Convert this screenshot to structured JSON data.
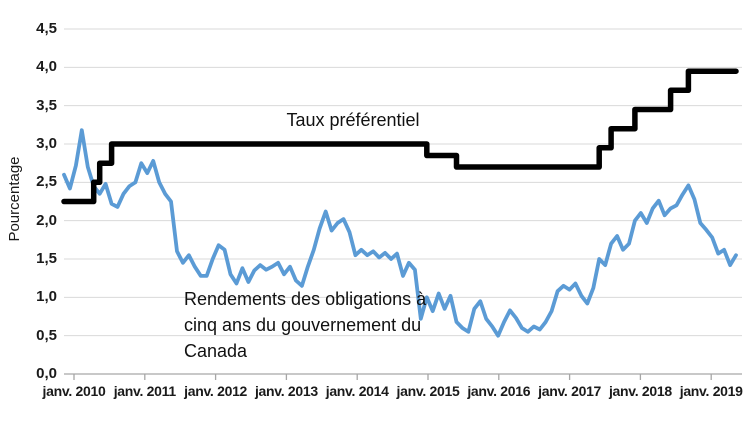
{
  "figure": {
    "y_axis_title": "Pourcentage",
    "annotations": {
      "prime_label": "Taux préférentiel",
      "bond_label": "Rendements des obligations à cinq ans du gouvernement du Canada"
    },
    "colors": {
      "prime_line": "#000000",
      "bond_line": "#5b9bd5",
      "gridline": "#d9d9d9",
      "axis_line": "#a6a6a6",
      "label_text": "#1a1a1a"
    }
  },
  "chart_data": {
    "type": "line",
    "title": "",
    "xlabel": "",
    "ylabel": "Pourcentage",
    "ylim": [
      0,
      4.5
    ],
    "y_tick_step": 0.5,
    "grid": true,
    "legend_position": "none (inline annotations)",
    "y_tick_labels": [
      "0,0",
      "0,5",
      "1,0",
      "1,5",
      "2,0",
      "2,5",
      "3,0",
      "3,5",
      "4,0",
      "4,5"
    ],
    "x_tick_labels": [
      "janv. 2010",
      "janv. 2011",
      "janv. 2012",
      "janv. 2013",
      "janv. 2014",
      "janv. 2015",
      "janv. 2016",
      "janv. 2017",
      "janv. 2018",
      "janv. 2019"
    ],
    "x_start": "2010-01",
    "x_frequency": "monthly",
    "series": [
      {
        "name": "Taux préférentiel",
        "style": "step",
        "color": "#000000",
        "values": [
          2.25,
          2.25,
          2.25,
          2.25,
          2.25,
          2.5,
          2.75,
          2.75,
          3.0,
          3.0,
          3.0,
          3.0,
          3.0,
          3.0,
          3.0,
          3.0,
          3.0,
          3.0,
          3.0,
          3.0,
          3.0,
          3.0,
          3.0,
          3.0,
          3.0,
          3.0,
          3.0,
          3.0,
          3.0,
          3.0,
          3.0,
          3.0,
          3.0,
          3.0,
          3.0,
          3.0,
          3.0,
          3.0,
          3.0,
          3.0,
          3.0,
          3.0,
          3.0,
          3.0,
          3.0,
          3.0,
          3.0,
          3.0,
          3.0,
          3.0,
          3.0,
          3.0,
          3.0,
          3.0,
          3.0,
          3.0,
          3.0,
          3.0,
          3.0,
          3.0,
          3.0,
          2.85,
          2.85,
          2.85,
          2.85,
          2.85,
          2.7,
          2.7,
          2.7,
          2.7,
          2.7,
          2.7,
          2.7,
          2.7,
          2.7,
          2.7,
          2.7,
          2.7,
          2.7,
          2.7,
          2.7,
          2.7,
          2.7,
          2.7,
          2.7,
          2.7,
          2.7,
          2.7,
          2.7,
          2.7,
          2.95,
          2.95,
          3.2,
          3.2,
          3.2,
          3.2,
          3.45,
          3.45,
          3.45,
          3.45,
          3.45,
          3.45,
          3.7,
          3.7,
          3.7,
          3.95,
          3.95,
          3.95,
          3.95,
          3.95,
          3.95,
          3.95,
          3.95,
          3.95
        ]
      },
      {
        "name": "Rendements des obligations à cinq ans du gouvernement du Canada",
        "style": "line",
        "color": "#5b9bd5",
        "values": [
          2.6,
          2.42,
          2.72,
          3.18,
          2.7,
          2.45,
          2.35,
          2.48,
          2.22,
          2.18,
          2.35,
          2.45,
          2.5,
          2.75,
          2.62,
          2.78,
          2.5,
          2.35,
          2.25,
          1.6,
          1.45,
          1.55,
          1.4,
          1.28,
          1.28,
          1.5,
          1.68,
          1.62,
          1.3,
          1.18,
          1.38,
          1.2,
          1.35,
          1.42,
          1.36,
          1.4,
          1.45,
          1.3,
          1.4,
          1.22,
          1.15,
          1.4,
          1.62,
          1.9,
          2.12,
          1.87,
          1.97,
          2.02,
          1.85,
          1.55,
          1.62,
          1.55,
          1.6,
          1.52,
          1.58,
          1.5,
          1.57,
          1.28,
          1.45,
          1.36,
          0.72,
          1.0,
          0.82,
          1.05,
          0.85,
          1.02,
          0.68,
          0.6,
          0.55,
          0.85,
          0.95,
          0.72,
          0.62,
          0.5,
          0.68,
          0.83,
          0.73,
          0.6,
          0.55,
          0.62,
          0.58,
          0.68,
          0.82,
          1.08,
          1.15,
          1.1,
          1.18,
          1.02,
          0.92,
          1.12,
          1.5,
          1.42,
          1.7,
          1.8,
          1.62,
          1.7,
          2.0,
          2.1,
          1.97,
          2.16,
          2.26,
          2.07,
          2.16,
          2.2,
          2.34,
          2.46,
          2.28,
          1.97,
          1.88,
          1.78,
          1.57,
          1.62,
          1.42,
          1.55
        ]
      }
    ]
  }
}
